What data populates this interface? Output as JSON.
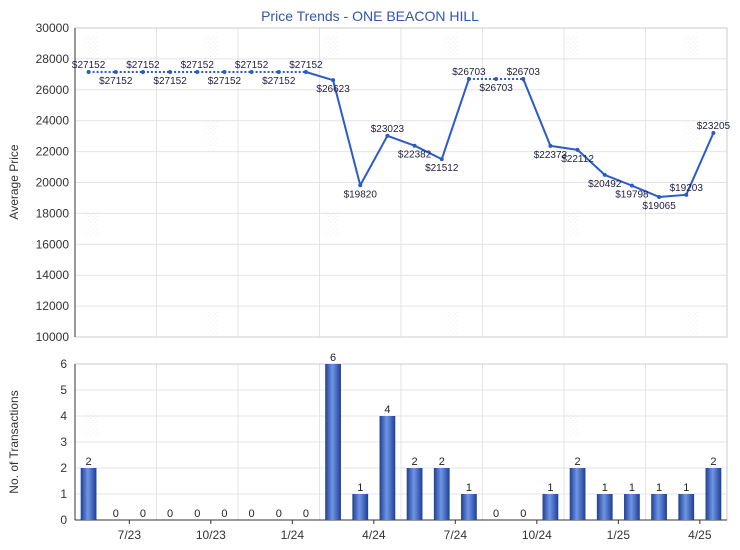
{
  "chart_data": [
    {
      "type": "line",
      "title": "Price Trends - ONE BEACON HILL",
      "ylabel": "Average Price",
      "ylim": [
        10000,
        30000
      ],
      "yticks": [
        10000,
        12000,
        14000,
        16000,
        18000,
        20000,
        22000,
        24000,
        26000,
        28000,
        30000
      ],
      "color": "#2a5bc9",
      "grid": true,
      "series": [
        {
          "values": [
            27152,
            27152,
            27152,
            27152,
            27152,
            27152,
            27152,
            27152,
            27152,
            26623,
            19820,
            23023,
            22382,
            21512,
            26703,
            26703,
            26703,
            22373,
            22112,
            20492,
            19798,
            19065,
            19203,
            23205
          ],
          "labels": [
            "$27152",
            "$27152",
            "$27152",
            "$27152",
            "$27152",
            "$27152",
            "$27152",
            "$27152",
            "$27152",
            "$26623",
            "$19820",
            "$23023",
            "$22382",
            "$21512",
            "$26703",
            "$26703",
            "$26703",
            "$22373",
            "$22112",
            "$20492",
            "$19798",
            "$19065",
            "$19203",
            "$23205"
          ],
          "dotted_segments": [
            [
              0,
              8
            ],
            [
              14,
              16
            ]
          ]
        }
      ]
    },
    {
      "type": "bar",
      "ylabel": "No. of Transactions",
      "ylim": [
        0,
        6
      ],
      "yticks": [
        0,
        1,
        2,
        3,
        4,
        5,
        6
      ],
      "color": "#3a6bd4",
      "values": [
        2,
        0,
        0,
        0,
        0,
        0,
        0,
        0,
        0,
        6,
        1,
        4,
        2,
        2,
        1,
        0,
        0,
        1,
        2,
        1,
        1,
        1,
        1,
        2
      ],
      "x_tick_labels": [
        "7/23",
        "10/23",
        "1/24",
        "4/24",
        "7/24",
        "10/24",
        "1/25",
        "4/25"
      ]
    }
  ]
}
